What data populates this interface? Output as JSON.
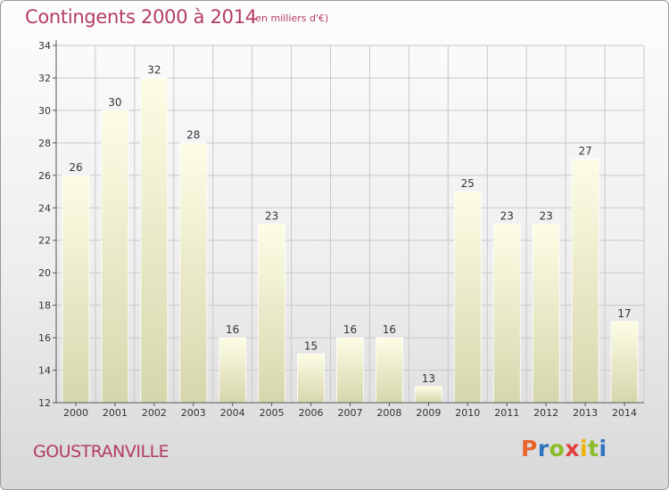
{
  "chart_data": {
    "type": "bar",
    "title": "Contingents 2000 à 2014",
    "subtitle": "(en milliers d'€)",
    "categories": [
      "2000",
      "2001",
      "2002",
      "2003",
      "2004",
      "2005",
      "2006",
      "2007",
      "2008",
      "2009",
      "2010",
      "2011",
      "2012",
      "2013",
      "2014"
    ],
    "values": [
      26,
      30,
      32,
      28,
      16,
      23,
      15,
      16,
      16,
      13,
      25,
      23,
      23,
      27,
      17
    ],
    "ylim": [
      12,
      34
    ],
    "yticks": [
      12,
      14,
      16,
      18,
      20,
      22,
      24,
      26,
      28,
      30,
      32,
      34
    ],
    "grid": true,
    "legend": "none"
  },
  "footer": {
    "commune": "GOUSTRANVILLE",
    "logo_letters": [
      "P",
      "r",
      "o",
      "x",
      "i",
      "t",
      "i"
    ],
    "logo_colors": [
      "#e8662e",
      "#2f74c0",
      "#8bbd2a",
      "#e23f3f",
      "#f0b400",
      "#8bbd2a",
      "#2f74c0"
    ]
  },
  "colors": {
    "title": "#b43c64",
    "bar_top": "#fdfde6",
    "bar_bottom": "#d6d6ac",
    "grid": "#c8c8c8"
  }
}
